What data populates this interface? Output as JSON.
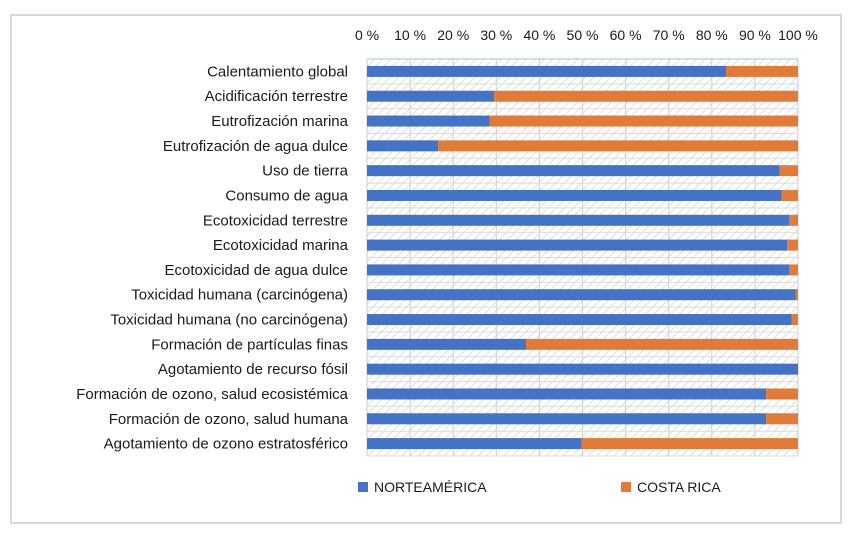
{
  "chart_data": {
    "type": "bar",
    "orientation": "horizontal",
    "stacked": "percent",
    "title": "",
    "xlabel": "",
    "ylabel": "",
    "xlim": [
      0,
      100
    ],
    "x_ticks": [
      "0 %",
      "10 %",
      "20 %",
      "30 %",
      "40 %",
      "50 %",
      "60 %",
      "70 %",
      "80 %",
      "90 %",
      "100 %"
    ],
    "x_axis_position": "top",
    "grid": true,
    "legend_position": "bottom",
    "categories": [
      "Calentamiento global",
      "Acidificación terrestre",
      "Eutrofización marina",
      "Eutrofización de agua dulce",
      "Uso de tierra",
      "Consumo de agua",
      "Ecotoxicidad terrestre",
      "Ecotoxicidad marina",
      "Ecotoxicidad de agua dulce",
      "Toxicidad humana (carcinógena)",
      "Toxicidad humana (no carcinógena)",
      "Formación de partículas finas",
      "Agotamiento de recurso fósil",
      "Formación de ozono, salud ecosistémica",
      "Formación de ozono, salud humana",
      "Agotamiento de ozono estratosférico"
    ],
    "series": [
      {
        "name": "NORTEAMÉRICA",
        "color": "#4472c4",
        "values": [
          83.3,
          29.5,
          28.5,
          16.5,
          95.7,
          96.2,
          98.0,
          97.5,
          98.0,
          99.5,
          98.5,
          36.9,
          100.0,
          92.6,
          92.6,
          49.8
        ]
      },
      {
        "name": "COSTA RICA",
        "color": "#e07b39",
        "values": [
          16.7,
          70.5,
          71.5,
          83.5,
          4.3,
          3.8,
          2.0,
          2.5,
          2.0,
          0.5,
          1.5,
          63.1,
          0.0,
          7.4,
          7.4,
          50.2
        ]
      }
    ]
  }
}
